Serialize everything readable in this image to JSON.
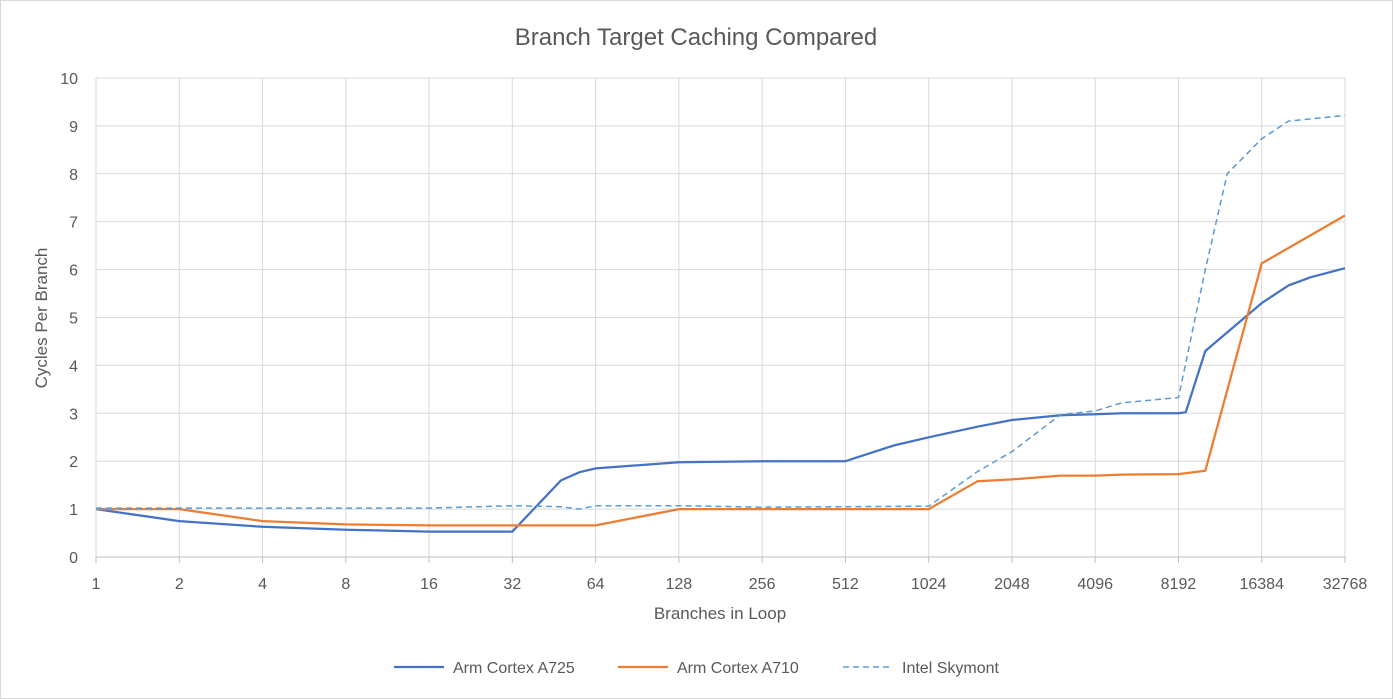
{
  "chart_data": {
    "type": "line",
    "title": "Branch Target Caching Compared",
    "xlabel": "Branches in Loop",
    "ylabel": "Cycles Per Branch",
    "x_scale": "log2",
    "x_tick_labels": [
      "1",
      "2",
      "4",
      "8",
      "16",
      "32",
      "64",
      "128",
      "256",
      "512",
      "1024",
      "2048",
      "4096",
      "8192",
      "16384",
      "32768"
    ],
    "ylim": [
      0,
      10
    ],
    "y_ticks": [
      "0",
      "1",
      "2",
      "3",
      "4",
      "5",
      "6",
      "7",
      "8",
      "9",
      "10"
    ],
    "grid": true,
    "legend_position": "bottom",
    "series": [
      {
        "name": "Arm Cortex A725",
        "color": "#4472C4",
        "dash": "solid",
        "points": [
          [
            1,
            1.0
          ],
          [
            2,
            0.75
          ],
          [
            4,
            0.63
          ],
          [
            8,
            0.57
          ],
          [
            16,
            0.53
          ],
          [
            32,
            0.53
          ],
          [
            48,
            1.6
          ],
          [
            56,
            1.77
          ],
          [
            64,
            1.85
          ],
          [
            128,
            1.98
          ],
          [
            256,
            2.0
          ],
          [
            512,
            2.0
          ],
          [
            768,
            2.33
          ],
          [
            1024,
            2.5
          ],
          [
            1536,
            2.72
          ],
          [
            2048,
            2.86
          ],
          [
            3072,
            2.96
          ],
          [
            4096,
            2.98
          ],
          [
            5120,
            3.0
          ],
          [
            8192,
            3.0
          ],
          [
            8704,
            3.02
          ],
          [
            10240,
            4.3
          ],
          [
            16384,
            5.3
          ],
          [
            20480,
            5.67
          ],
          [
            24576,
            5.84
          ],
          [
            32768,
            6.03
          ]
        ]
      },
      {
        "name": "Arm Cortex A710",
        "color": "#ED7D31",
        "dash": "solid",
        "points": [
          [
            1,
            1.0
          ],
          [
            2,
            1.0
          ],
          [
            4,
            0.75
          ],
          [
            8,
            0.68
          ],
          [
            16,
            0.66
          ],
          [
            32,
            0.66
          ],
          [
            64,
            0.66
          ],
          [
            128,
            1.0
          ],
          [
            256,
            1.0
          ],
          [
            512,
            1.0
          ],
          [
            1024,
            1.0
          ],
          [
            1536,
            1.58
          ],
          [
            2048,
            1.62
          ],
          [
            3072,
            1.7
          ],
          [
            4096,
            1.7
          ],
          [
            5120,
            1.72
          ],
          [
            8192,
            1.73
          ],
          [
            10240,
            1.8
          ],
          [
            16384,
            6.13
          ],
          [
            32768,
            7.13
          ]
        ]
      },
      {
        "name": "Intel Skymont",
        "color": "#5B9BD5",
        "dash": "dashed",
        "points": [
          [
            1,
            1.02
          ],
          [
            2,
            1.02
          ],
          [
            4,
            1.02
          ],
          [
            8,
            1.02
          ],
          [
            16,
            1.02
          ],
          [
            32,
            1.07
          ],
          [
            48,
            1.05
          ],
          [
            56,
            1.0
          ],
          [
            64,
            1.07
          ],
          [
            128,
            1.07
          ],
          [
            256,
            1.04
          ],
          [
            512,
            1.05
          ],
          [
            1024,
            1.06
          ],
          [
            1536,
            1.78
          ],
          [
            2048,
            2.2
          ],
          [
            3072,
            2.97
          ],
          [
            4096,
            3.05
          ],
          [
            5120,
            3.22
          ],
          [
            8192,
            3.33
          ],
          [
            10240,
            6.0
          ],
          [
            12288,
            8.0
          ],
          [
            16384,
            8.73
          ],
          [
            20480,
            9.1
          ],
          [
            32768,
            9.22
          ]
        ]
      }
    ]
  }
}
